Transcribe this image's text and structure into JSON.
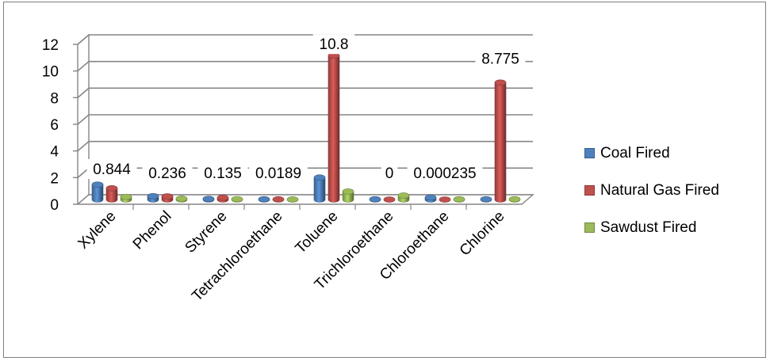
{
  "chart_data": {
    "type": "bar",
    "categories": [
      "Xylene",
      "Phenol",
      "Styrene",
      "Tetrachloroethane",
      "Toluene",
      "Trichloroethane",
      "Chloroethane",
      "Chlorine"
    ],
    "series": [
      {
        "name": "Coal Fired",
        "color": "#4f81bd",
        "values": [
          1.12,
          0.25,
          0.05,
          0.02,
          1.65,
          0.02,
          0.15,
          0.02
        ]
      },
      {
        "name": "Natural Gas Fired",
        "color": "#c0504d",
        "values": [
          0.844,
          0.236,
          0.135,
          0.0189,
          10.8,
          0,
          0.000235,
          8.775
        ]
      },
      {
        "name": "Sawdust Fired",
        "color": "#9bbb59",
        "values": [
          0.2,
          0.07,
          0.03,
          0.01,
          0.6,
          0.3,
          0.02,
          0.02
        ]
      }
    ],
    "data_labels": [
      "0.844",
      "0.236",
      "0.135",
      "0.0189",
      "10.8",
      "0",
      "0.000235",
      "8.775"
    ],
    "y_ticks": [
      "0",
      "2",
      "4",
      "6",
      "8",
      "10",
      "12"
    ],
    "ylim": [
      0,
      12
    ],
    "style": "3d-cylinder",
    "grid": true,
    "legend_position": "right"
  }
}
